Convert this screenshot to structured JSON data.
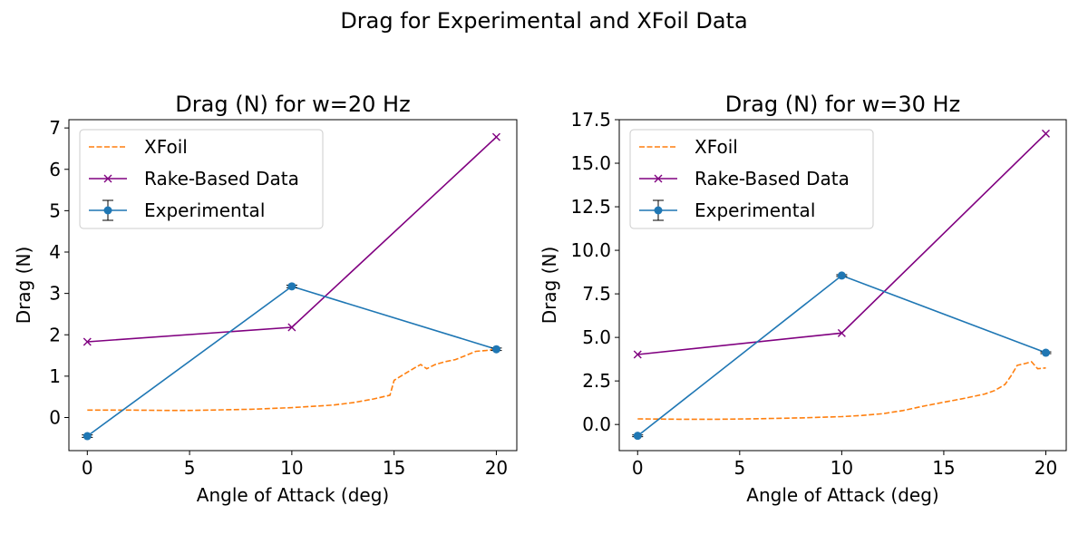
{
  "figure": {
    "suptitle": "Drag for Experimental and XFoil Data"
  },
  "colors": {
    "xfoil": "#ff7f0e",
    "rake": "#800080",
    "experimental": "#1f77b4"
  },
  "chart_data": [
    {
      "type": "line",
      "title": "Drag (N) for w=20 Hz",
      "xlabel": "Angle of Attack (deg)",
      "ylabel": "Drag (N)",
      "xlim": [
        -0.9,
        21
      ],
      "ylim": [
        -0.8,
        7.2
      ],
      "xticks": [
        0,
        5,
        10,
        15,
        20
      ],
      "yticks": [
        0,
        1,
        2,
        3,
        4,
        5,
        6,
        7
      ],
      "legend_position": "top-left",
      "series": [
        {
          "name": "XFoil",
          "style": "dashed",
          "x": [
            0,
            2,
            4,
            5,
            6,
            8,
            10,
            11,
            12,
            13,
            14,
            14.8,
            15,
            15.5,
            16,
            16.3,
            16.6,
            17,
            17.5,
            18,
            18.5,
            19,
            19.5,
            20
          ],
          "y": [
            0.18,
            0.18,
            0.17,
            0.17,
            0.18,
            0.2,
            0.24,
            0.27,
            0.3,
            0.36,
            0.45,
            0.54,
            0.9,
            1.05,
            1.2,
            1.28,
            1.18,
            1.28,
            1.35,
            1.4,
            1.5,
            1.6,
            1.62,
            1.65
          ]
        },
        {
          "name": "Rake-Based Data",
          "marker": "x",
          "x": [
            0,
            10,
            20
          ],
          "y": [
            1.83,
            2.18,
            6.78
          ]
        },
        {
          "name": "Experimental",
          "marker": "o",
          "errorbars": true,
          "x": [
            0,
            10,
            20
          ],
          "y": [
            -0.45,
            3.17,
            1.65
          ],
          "yerr": [
            0.03,
            0.03,
            0.03
          ]
        }
      ]
    },
    {
      "type": "line",
      "title": "Drag (N) for w=30 Hz",
      "xlabel": "Angle of Attack (deg)",
      "ylabel": "Drag (N)",
      "xlim": [
        -0.9,
        21
      ],
      "ylim": [
        -1.5,
        17.5
      ],
      "xticks": [
        0,
        5,
        10,
        15,
        20
      ],
      "yticks": [
        0.0,
        2.5,
        5.0,
        7.5,
        10.0,
        12.5,
        15.0,
        17.5
      ],
      "ytick_labels": [
        "0.0",
        "2.5",
        "5.0",
        "7.5",
        "10.0",
        "12.5",
        "15.0",
        "17.5"
      ],
      "legend_position": "top-left",
      "series": [
        {
          "name": "XFoil",
          "style": "dashed",
          "x": [
            0,
            2,
            4,
            6,
            8,
            10,
            11,
            12,
            13,
            14,
            15,
            16,
            17,
            17.5,
            18,
            18.3,
            18.6,
            19,
            19.3,
            19.6,
            20
          ],
          "y": [
            0.32,
            0.3,
            0.3,
            0.33,
            0.38,
            0.45,
            0.52,
            0.62,
            0.8,
            1.05,
            1.28,
            1.5,
            1.75,
            1.95,
            2.3,
            2.8,
            3.4,
            3.5,
            3.6,
            3.2,
            3.25
          ]
        },
        {
          "name": "Rake-Based Data",
          "marker": "x",
          "x": [
            0,
            10,
            20
          ],
          "y": [
            4.02,
            5.25,
            16.7
          ]
        },
        {
          "name": "Experimental",
          "marker": "o",
          "errorbars": true,
          "x": [
            0,
            10,
            20
          ],
          "y": [
            -0.65,
            8.55,
            4.12
          ],
          "yerr": [
            0.05,
            0.05,
            0.05
          ]
        }
      ]
    }
  ]
}
